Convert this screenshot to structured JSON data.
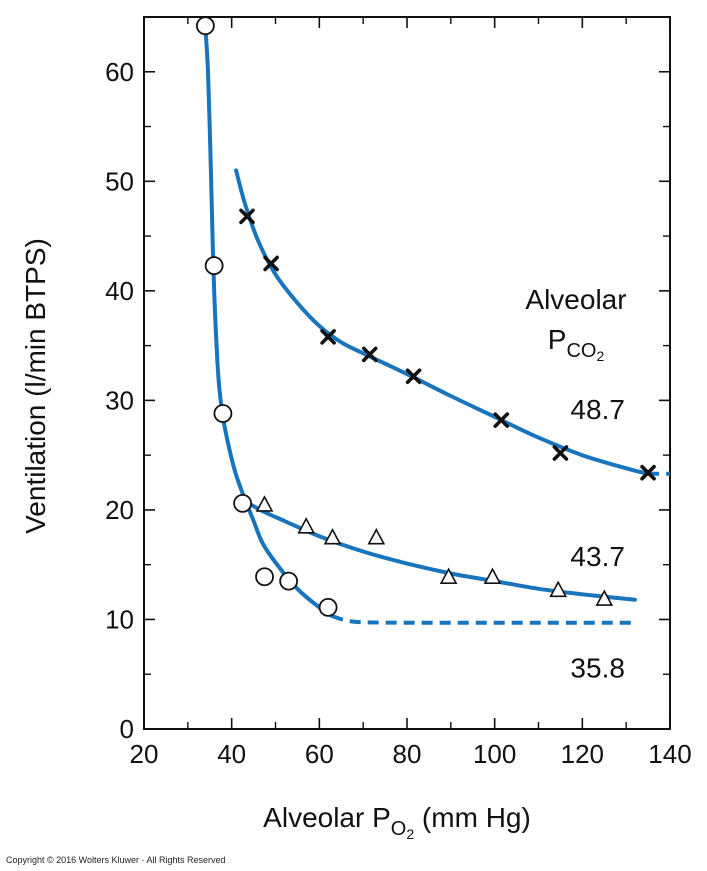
{
  "chart_data": {
    "type": "scatter",
    "xlabel": {
      "main": "Alveolar P",
      "sub": "O",
      "subsub": "2",
      "unit": " (mm Hg)"
    },
    "ylabel": "Ventilation (l/min BTPS)",
    "xlim": [
      20,
      140
    ],
    "ylim": [
      0,
      65
    ],
    "x_ticks": [
      20,
      40,
      60,
      80,
      100,
      120,
      140
    ],
    "y_ticks": [
      0,
      10,
      20,
      30,
      40,
      50,
      60
    ],
    "grid": false,
    "colors": {
      "curve": "#1874BD",
      "marker": "#111111"
    },
    "legend_title": {
      "line1": "Alveolar",
      "line2_main": "P",
      "line2_sub": "CO",
      "line2_subsub": "2"
    },
    "series": [
      {
        "name": "48.7",
        "marker": "cross",
        "points": [
          [
            43.5,
            46.8
          ],
          [
            49,
            42.5
          ],
          [
            62,
            35.8
          ],
          [
            71.5,
            34.2
          ],
          [
            81.5,
            32.2
          ],
          [
            101.5,
            28.2
          ],
          [
            115,
            25.2
          ],
          [
            135,
            23.4
          ]
        ],
        "curve_solid": [
          [
            41,
            51
          ],
          [
            43,
            48
          ],
          [
            46,
            44.6
          ],
          [
            50,
            41.5
          ],
          [
            55,
            38.9
          ],
          [
            60,
            36.8
          ],
          [
            65,
            35.3
          ],
          [
            70,
            34.3
          ],
          [
            80,
            32.4
          ],
          [
            90,
            30.4
          ],
          [
            100,
            28.5
          ],
          [
            110,
            26.6
          ],
          [
            120,
            25
          ],
          [
            130,
            23.8
          ],
          [
            135,
            23.3
          ]
        ],
        "curve_dashed": [
          [
            135,
            23.3
          ],
          [
            140,
            23.3
          ]
        ]
      },
      {
        "name": "43.7",
        "marker": "triangle",
        "points": [
          [
            47.5,
            20.4
          ],
          [
            57,
            18.4
          ],
          [
            63,
            17.4
          ],
          [
            73,
            17.4
          ],
          [
            89.5,
            13.8
          ],
          [
            99.5,
            13.8
          ],
          [
            114.5,
            12.6
          ],
          [
            125,
            11.8
          ]
        ],
        "curve_solid": [
          [
            43,
            20.8
          ],
          [
            47,
            19.9
          ],
          [
            52,
            19
          ],
          [
            60,
            17.6
          ],
          [
            70,
            16.2
          ],
          [
            80,
            15.1
          ],
          [
            90,
            14.2
          ],
          [
            100,
            13.5
          ],
          [
            110,
            12.8
          ],
          [
            120,
            12.3
          ],
          [
            132,
            11.8
          ]
        ],
        "curve_dashed": []
      },
      {
        "name": "35.8",
        "marker": "circle",
        "points": [
          [
            34,
            64.2
          ],
          [
            36,
            42.3
          ],
          [
            38,
            28.8
          ],
          [
            42.5,
            20.6
          ],
          [
            47.5,
            13.9
          ],
          [
            53,
            13.5
          ],
          [
            62,
            11.1
          ]
        ],
        "curve_solid": [
          [
            34,
            64
          ],
          [
            34.6,
            60
          ],
          [
            35.2,
            52
          ],
          [
            35.7,
            44
          ],
          [
            36.2,
            38
          ],
          [
            37,
            32
          ],
          [
            38,
            28.5
          ],
          [
            39.5,
            25.5
          ],
          [
            41,
            23.2
          ],
          [
            43,
            21
          ],
          [
            45,
            19
          ],
          [
            47,
            17
          ],
          [
            50,
            15.2
          ],
          [
            55,
            12.8
          ],
          [
            60,
            11.1
          ],
          [
            63,
            10.3
          ]
        ],
        "curve_dashed": [
          [
            63,
            10.3
          ],
          [
            68,
            9.8
          ],
          [
            80,
            9.7
          ],
          [
            100,
            9.7
          ],
          [
            120,
            9.7
          ],
          [
            132,
            9.7
          ]
        ]
      }
    ],
    "annotations": [
      {
        "text": "48.7",
        "x": 123.5,
        "y": 29.2
      },
      {
        "text": "43.7",
        "x": 123.5,
        "y": 15.8
      },
      {
        "text": "35.8",
        "x": 123.5,
        "y": 5.6
      }
    ]
  },
  "copyright": "Copyright © 2016 Wolters Kluwer · All Rights Reserved"
}
